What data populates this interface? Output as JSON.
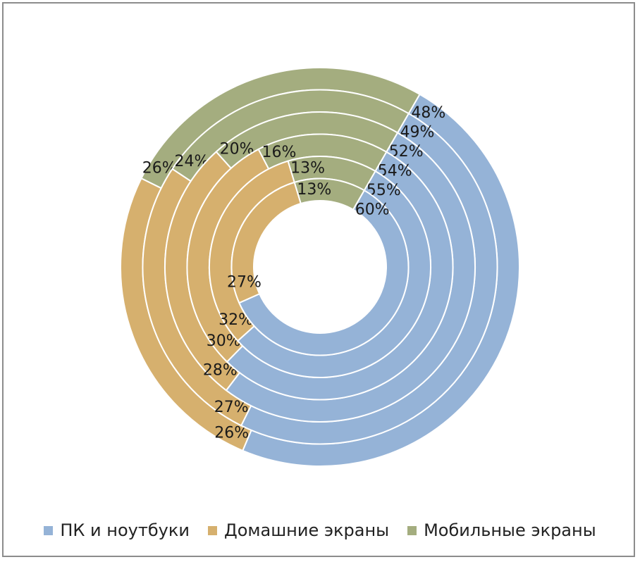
{
  "chart_data": {
    "type": "pie",
    "subtype": "multi-ring-donut",
    "title": "",
    "categories": [
      "ПК и ноутбуки",
      "Домашние экраны",
      "Мобильные экраны"
    ],
    "colors": [
      "#95b3d7",
      "#d6b06e",
      "#a4ad7f"
    ],
    "rings_outer_to_inner": [
      {
        "values": [
          48,
          26,
          26
        ],
        "labels": [
          "48%",
          "26%",
          "26%"
        ]
      },
      {
        "values": [
          49,
          27,
          24
        ],
        "labels": [
          "49%",
          "27%",
          "24%"
        ]
      },
      {
        "values": [
          52,
          28,
          20
        ],
        "labels": [
          "52%",
          "28%",
          "20%"
        ]
      },
      {
        "values": [
          54,
          30,
          16
        ],
        "labels": [
          "54%",
          "30%",
          "16%"
        ]
      },
      {
        "values": [
          55,
          32,
          13
        ],
        "labels": [
          "55%",
          "32%",
          "13%"
        ]
      },
      {
        "values": [
          60,
          27,
          13
        ],
        "labels": [
          "60%",
          "27%",
          "13%"
        ]
      }
    ],
    "legend_position": "bottom"
  },
  "legend": {
    "items": [
      {
        "label": "ПК и ноутбуки",
        "color": "#95b3d7"
      },
      {
        "label": "Домашние экраны",
        "color": "#d6b06e"
      },
      {
        "label": "Мобильные экраны",
        "color": "#a4ad7f"
      }
    ]
  }
}
